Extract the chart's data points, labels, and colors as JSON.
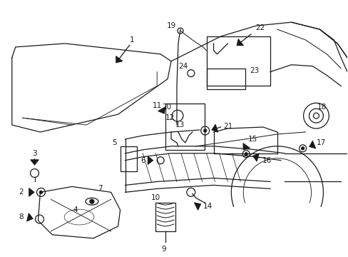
{
  "background_color": "#ffffff",
  "line_color": "#1a1a1a",
  "fig_width": 4.89,
  "fig_height": 3.6,
  "dpi": 100,
  "font_size": 7.5
}
